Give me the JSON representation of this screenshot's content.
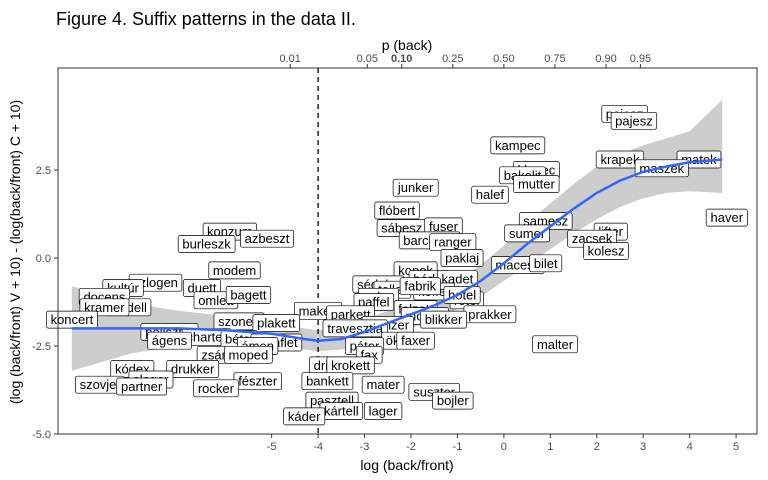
{
  "chart_data": {
    "type": "scatter",
    "title": "Figure 4. Suffix patterns in the data II.",
    "xlabel": "log (back/front)",
    "ylabel": "(log (back/front) V + 10) - (log(back/front) C + 10)",
    "top_axis_label": "p (back)",
    "xlim": [
      -9.6,
      5.45
    ],
    "ylim": [
      -5.0,
      5.4
    ],
    "x_ticks": [
      -5,
      -4,
      -3,
      -2,
      -1,
      0,
      1,
      2,
      3,
      4,
      5
    ],
    "x_tick_labels": [
      "-5",
      "-4",
      "-3",
      "-2",
      "-1",
      "0",
      "1",
      "2",
      "3",
      "4",
      "5"
    ],
    "y_ticks": [
      -5.0,
      -2.5,
      0.0,
      2.5
    ],
    "y_tick_labels": [
      "-5.0",
      "-2.5",
      "0.0",
      "2.5"
    ],
    "top_ticks": [
      {
        "label": "0.01",
        "x": -4.6,
        "bold": false
      },
      {
        "label": "0.05",
        "x": -2.94,
        "bold": false
      },
      {
        "label": "0.10",
        "x": -2.2,
        "bold": true
      },
      {
        "label": "0.25",
        "x": -1.1,
        "bold": false
      },
      {
        "label": "0.50",
        "x": 0.0,
        "bold": false
      },
      {
        "label": "0.75",
        "x": 1.1,
        "bold": false
      },
      {
        "label": "0.90",
        "x": 2.2,
        "bold": false
      },
      {
        "label": "0.95",
        "x": 2.94,
        "bold": false
      }
    ],
    "reference_line": {
      "x": -4.0,
      "style": "dashed"
    },
    "grid": false,
    "smooth": {
      "x": [
        -9.3,
        -8.0,
        -7.0,
        -6.0,
        -5.0,
        -4.3,
        -4.0,
        -3.5,
        -3.0,
        -2.5,
        -2.0,
        -1.5,
        -1.0,
        -0.5,
        0.0,
        0.5,
        1.0,
        1.5,
        2.0,
        2.5,
        3.0,
        3.5,
        4.0,
        4.7
      ],
      "y": [
        -2.0,
        -2.0,
        -2.0,
        -2.05,
        -2.15,
        -2.3,
        -2.35,
        -2.3,
        -2.1,
        -1.85,
        -1.6,
        -1.35,
        -1.05,
        -0.65,
        -0.15,
        0.4,
        0.9,
        1.4,
        1.85,
        2.2,
        2.45,
        2.6,
        2.72,
        2.8
      ],
      "ci_low": [
        -3.2,
        -2.7,
        -2.5,
        -2.45,
        -2.5,
        -2.6,
        -2.65,
        -2.6,
        -2.45,
        -2.2,
        -2.0,
        -1.75,
        -1.45,
        -1.1,
        -0.65,
        -0.2,
        0.25,
        0.7,
        1.1,
        1.45,
        1.7,
        1.85,
        1.9,
        1.85
      ],
      "ci_high": [
        -0.8,
        -1.3,
        -1.5,
        -1.65,
        -1.8,
        -2.0,
        -2.05,
        -2.0,
        -1.75,
        -1.5,
        -1.2,
        -0.95,
        -0.65,
        -0.2,
        0.35,
        1.0,
        1.55,
        2.1,
        2.6,
        2.95,
        3.2,
        3.4,
        3.6,
        4.5
      ],
      "line_color": "#3366ff",
      "ci_color": "#c4c4c4"
    },
    "points": [
      {
        "label": "pajesz",
        "x": 2.6,
        "y": 4.1
      },
      {
        "label": "pajesz",
        "x": 2.8,
        "y": 3.9
      },
      {
        "label": "kampec",
        "x": 0.3,
        "y": 3.2
      },
      {
        "label": "krapek",
        "x": 2.5,
        "y": 2.8
      },
      {
        "label": "matek",
        "x": 4.2,
        "y": 2.8
      },
      {
        "label": "maszek",
        "x": 3.4,
        "y": 2.55
      },
      {
        "label": "klapec",
        "x": 0.7,
        "y": 2.5
      },
      {
        "label": "bakelit",
        "x": 0.4,
        "y": 2.35
      },
      {
        "label": "mutter",
        "x": 0.7,
        "y": 2.1
      },
      {
        "label": "junker",
        "x": -1.9,
        "y": 2.0
      },
      {
        "label": "halef",
        "x": -0.3,
        "y": 1.8
      },
      {
        "label": "flóbert",
        "x": -2.3,
        "y": 1.35
      },
      {
        "label": "haver",
        "x": 4.8,
        "y": 1.15
      },
      {
        "label": "samesz",
        "x": 0.9,
        "y": 1.05
      },
      {
        "label": "sábesz",
        "x": -2.2,
        "y": 0.85
      },
      {
        "label": "fuser",
        "x": -1.3,
        "y": 0.9
      },
      {
        "label": "sumer",
        "x": 0.5,
        "y": 0.7
      },
      {
        "label": "lifter",
        "x": 2.3,
        "y": 0.75
      },
      {
        "label": "konzum",
        "x": -5.9,
        "y": 0.75
      },
      {
        "label": "azbeszt",
        "x": -5.1,
        "y": 0.55
      },
      {
        "label": "burleszk",
        "x": -6.4,
        "y": 0.4
      },
      {
        "label": "barchesz",
        "x": -1.6,
        "y": 0.5
      },
      {
        "label": "ranger",
        "x": -1.1,
        "y": 0.45
      },
      {
        "label": "zacsek",
        "x": 1.9,
        "y": 0.55
      },
      {
        "label": "kolesz",
        "x": 2.2,
        "y": 0.2
      },
      {
        "label": "paklaj",
        "x": -0.9,
        "y": 0.0
      },
      {
        "label": "macesz",
        "x": 0.3,
        "y": -0.2
      },
      {
        "label": "bilet",
        "x": 0.9,
        "y": -0.15
      },
      {
        "label": "modem",
        "x": -5.8,
        "y": -0.35
      },
      {
        "label": "kopek",
        "x": -1.9,
        "y": -0.35
      },
      {
        "label": "bérlet",
        "x": -1.6,
        "y": -0.6
      },
      {
        "label": "kadet",
        "x": -1.0,
        "y": -0.6
      },
      {
        "label": "szlogen",
        "x": -7.5,
        "y": -0.7
      },
      {
        "label": "kultúr",
        "x": -8.2,
        "y": -0.85
      },
      {
        "label": "duett",
        "x": -6.5,
        "y": -0.85
      },
      {
        "label": "sédeler",
        "x": -2.7,
        "y": -0.75
      },
      {
        "label": "teller",
        "x": -2.4,
        "y": -0.9
      },
      {
        "label": "koffer",
        "x": -1.5,
        "y": -0.95
      },
      {
        "label": "fabrik",
        "x": -1.8,
        "y": -0.8
      },
      {
        "label": "docens",
        "x": -8.6,
        "y": -1.1
      },
      {
        "label": "omlett",
        "x": -6.2,
        "y": -1.2
      },
      {
        "label": "bagett",
        "x": -5.5,
        "y": -1.05
      },
      {
        "label": "paket",
        "x": -2.7,
        "y": -1.1
      },
      {
        "label": "rotel",
        "x": -0.8,
        "y": -1.2
      },
      {
        "label": "paffel",
        "x": -2.8,
        "y": -1.25
      },
      {
        "label": "hotel",
        "x": -0.9,
        "y": -1.05
      },
      {
        "label": "modell",
        "x": -8.1,
        "y": -1.4
      },
      {
        "label": "kramer",
        "x": -8.6,
        "y": -1.4
      },
      {
        "label": "falzett",
        "x": -1.9,
        "y": -1.45
      },
      {
        "label": "makett",
        "x": -4.0,
        "y": -1.5
      },
      {
        "label": "parkett",
        "x": -3.3,
        "y": -1.6
      },
      {
        "label": "mokett",
        "x": -1.7,
        "y": -1.65
      },
      {
        "label": "prakker",
        "x": -0.3,
        "y": -1.6
      },
      {
        "label": "koncert",
        "x": -9.3,
        "y": -1.75
      },
      {
        "label": "szonett",
        "x": -5.7,
        "y": -1.8
      },
      {
        "label": "blikker",
        "x": -1.3,
        "y": -1.75
      },
      {
        "label": "vamzer",
        "x": -2.5,
        "y": -1.9
      },
      {
        "label": "travesztia",
        "x": -3.2,
        "y": -2.0
      },
      {
        "label": "poliszter",
        "x": -7.2,
        "y": -2.1
      },
      {
        "label": "charter",
        "x": -6.4,
        "y": -2.25
      },
      {
        "label": "plakett",
        "x": -4.9,
        "y": -1.85
      },
      {
        "label": "ágens",
        "x": -7.2,
        "y": -2.35
      },
      {
        "label": "bétel",
        "x": -5.7,
        "y": -2.3
      },
      {
        "label": "ökker",
        "x": -2.2,
        "y": -2.35
      },
      {
        "label": "pamflet",
        "x": -4.9,
        "y": -2.4
      },
      {
        "label": "ámen",
        "x": -5.3,
        "y": -2.5
      },
      {
        "label": "páter",
        "x": -3.0,
        "y": -2.5
      },
      {
        "label": "faxer",
        "x": -1.9,
        "y": -2.35
      },
      {
        "label": "malter",
        "x": 1.1,
        "y": -2.45
      },
      {
        "label": "zsámoly",
        "x": -6.0,
        "y": -2.75
      },
      {
        "label": "moped",
        "x": -5.5,
        "y": -2.75
      },
      {
        "label": "fax",
        "x": -2.9,
        "y": -2.75
      },
      {
        "label": "drikk",
        "x": -3.8,
        "y": -3.05
      },
      {
        "label": "krokett",
        "x": -3.3,
        "y": -3.05
      },
      {
        "label": "kódex",
        "x": -8.0,
        "y": -3.15
      },
      {
        "label": "drukker",
        "x": -6.7,
        "y": -3.15
      },
      {
        "label": "slager",
        "x": -7.6,
        "y": -3.45
      },
      {
        "label": "fészter",
        "x": -5.3,
        "y": -3.5
      },
      {
        "label": "bankett",
        "x": -3.8,
        "y": -3.5
      },
      {
        "label": "mater",
        "x": -2.6,
        "y": -3.6
      },
      {
        "label": "szovjet",
        "x": -8.7,
        "y": -3.6
      },
      {
        "label": "partner",
        "x": -7.8,
        "y": -3.65
      },
      {
        "label": "rocker",
        "x": -6.2,
        "y": -3.7
      },
      {
        "label": "suszter",
        "x": -1.5,
        "y": -3.8
      },
      {
        "label": "pasztell",
        "x": -3.7,
        "y": -4.05
      },
      {
        "label": "bojler",
        "x": -1.1,
        "y": -4.05
      },
      {
        "label": "kártell",
        "x": -3.5,
        "y": -4.35
      },
      {
        "label": "lager",
        "x": -2.6,
        "y": -4.35
      },
      {
        "label": "káder",
        "x": -4.3,
        "y": -4.5
      }
    ]
  }
}
